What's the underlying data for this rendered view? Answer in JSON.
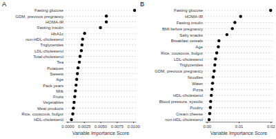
{
  "chart_data": [
    {
      "type": "dot",
      "title": "A",
      "x_label": "Variable Importance Score",
      "orientation": "horizontal",
      "grid": true,
      "marker": "circle",
      "color": "#000000",
      "categories": [
        "Fasting glucose",
        "GDM, previous pregnancy",
        "HOMA-IR",
        "Fasting insulin",
        "HbA1c",
        "non-HDL-cholesterol",
        "Triglycerides",
        "LDL-cholesterol",
        "Total-cholesterol",
        "Tea",
        "Potatoes",
        "Sweets",
        "Age",
        "Pack years",
        "Milk",
        "Fruits",
        "Vegetables",
        "Meat products",
        "Rice, couscous, bulgur",
        "HDL-cholesterol"
      ],
      "values": [
        0.0102,
        0.0059,
        0.0059,
        0.005,
        0.0026,
        0.0023,
        0.0022,
        0.0021,
        0.0019,
        0.0018,
        0.0016,
        0.0015,
        0.0014,
        0.0013,
        0.0012,
        0.0011,
        0.001,
        0.0009,
        0.0008,
        0.0006
      ],
      "xlim": [
        -0.0003,
        0.0104
      ],
      "xticks": [
        {
          "value": 0,
          "label": "0.0000"
        },
        {
          "value": 0.0025,
          "label": "0.0025"
        },
        {
          "value": 0.005,
          "label": "0.0050"
        },
        {
          "value": 0.0075,
          "label": "0.0075"
        },
        {
          "value": 0.01,
          "label": "0.0100"
        }
      ]
    },
    {
      "type": "dot",
      "title": "B",
      "x_label": "Variable Importance Score",
      "orientation": "horizontal",
      "grid": true,
      "marker": "circle",
      "color": "#000000",
      "categories": [
        "Fasting glucose",
        "HOMA-IR",
        "Fasting insulin",
        "BMI before pregnancy",
        "Salty snacks",
        "Breakfast cereals",
        "Age",
        "Rice, couscous, bulgur",
        "LDL-cholesterol",
        "Triglycerides",
        "GDM, previous pregnancy",
        "Noodles",
        "Water",
        "Pizza",
        "HDL-cholesterol",
        "Blood pressure, systolic",
        "Poultry",
        "Cream cheese",
        "non-HDL-cholesterol"
      ],
      "values": [
        0.02,
        0.0106,
        0.0088,
        0.008,
        0.0063,
        0.0038,
        0.0036,
        0.0031,
        0.0027,
        0.0025,
        0.0023,
        0.002,
        0.0018,
        0.0016,
        0.0014,
        0.0012,
        0.0011,
        0.0009,
        0.0007
      ],
      "xlim": [
        -0.0006,
        0.0206
      ],
      "xticks": [
        {
          "value": 0,
          "label": "0.00"
        },
        {
          "value": 0.01,
          "label": "0.01"
        },
        {
          "value": 0.02,
          "label": "0.02"
        }
      ]
    }
  ]
}
